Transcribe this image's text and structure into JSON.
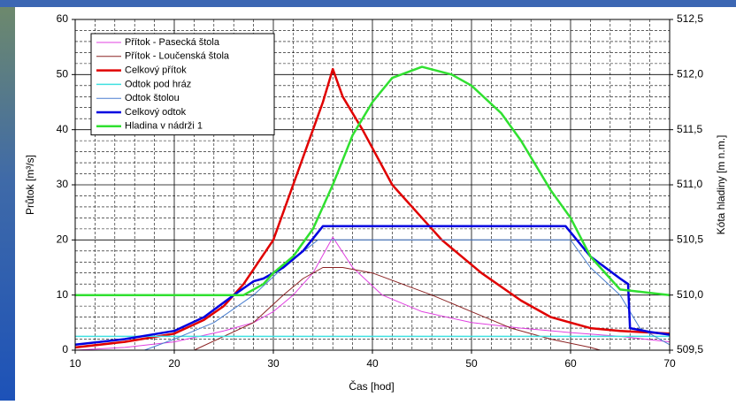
{
  "chart_data": {
    "type": "line",
    "xlabel": "Čas [hod]",
    "ylabel": "Průtok [m³/s]",
    "y2label": "Kóta hladiny [m n.m.]",
    "xlim": [
      10,
      70
    ],
    "xticks": [
      10,
      20,
      30,
      40,
      50,
      60,
      70
    ],
    "ylim": [
      0,
      60
    ],
    "yticks": [
      0,
      10,
      20,
      30,
      40,
      50,
      60
    ],
    "y2lim": [
      509.5,
      512.5
    ],
    "y2ticks": [
      {
        "value": 509.5,
        "label": "509,5"
      },
      {
        "value": 510.0,
        "label": "510,0"
      },
      {
        "value": 510.5,
        "label": "510,5"
      },
      {
        "value": 511.0,
        "label": "511,0"
      },
      {
        "value": 511.5,
        "label": "511,5"
      },
      {
        "value": 512.0,
        "label": "512,0"
      },
      {
        "value": 512.5,
        "label": "512,5"
      }
    ],
    "grid": true,
    "legend": "upper left",
    "series": [
      {
        "name": "Přítok - Pasecká štola",
        "color": "#e040e0",
        "width": 1,
        "x": [
          10,
          15,
          20,
          25,
          28,
          30,
          32,
          34,
          36,
          38,
          41,
          45,
          50,
          55,
          60,
          65,
          70
        ],
        "values": [
          0,
          0.5,
          1.5,
          3.5,
          5,
          7,
          10,
          14,
          20.5,
          15,
          10,
          7,
          5,
          4,
          3.2,
          2.5,
          1.5
        ]
      },
      {
        "name": "Přítok - Loučenská štola",
        "color": "#8b2323",
        "width": 1,
        "x": [
          22,
          25,
          28,
          31,
          33,
          35,
          37,
          40,
          43,
          46,
          50,
          54,
          58,
          62,
          63
        ],
        "values": [
          0,
          2.5,
          5,
          10,
          13,
          15,
          15,
          14,
          12,
          10,
          7,
          4,
          2,
          0.5,
          0
        ]
      },
      {
        "name": "Celkový přítok",
        "color": "#e00000",
        "width": 2.5,
        "x": [
          10,
          15,
          20,
          23,
          25,
          27,
          30,
          33,
          35,
          36,
          37,
          39,
          42,
          45,
          47,
          51,
          55,
          58,
          62,
          65,
          70
        ],
        "values": [
          0.5,
          1.5,
          3,
          5.5,
          8,
          12,
          20,
          35,
          45,
          51,
          46,
          40,
          30,
          24,
          20,
          14,
          9,
          6,
          4,
          3.5,
          3
        ]
      },
      {
        "name": "Odtok pod hráz",
        "color": "#40e0e0",
        "width": 1.5,
        "x": [
          10,
          70
        ],
        "values": [
          2.5,
          2.5
        ]
      },
      {
        "name": "Odtok štolou",
        "color": "#4a7fd0",
        "width": 1,
        "x": [
          17,
          20,
          24,
          28,
          31,
          34.5,
          60,
          62,
          65,
          67,
          70
        ],
        "values": [
          0,
          2,
          5,
          10,
          15,
          20,
          20,
          15,
          10,
          4,
          1
        ]
      },
      {
        "name": "Celkový odtok",
        "color": "#0000e0",
        "width": 2.5,
        "x": [
          10,
          15,
          20,
          23,
          26,
          28,
          29,
          31,
          33,
          35,
          59.5,
          62,
          65,
          65.8,
          66,
          68,
          70
        ],
        "values": [
          1,
          2,
          3.5,
          6,
          10,
          12.5,
          13,
          15,
          18,
          22.5,
          22.5,
          17,
          13,
          12,
          4,
          3.3,
          2.8
        ]
      },
      {
        "name": "Hladina v nádrži 1",
        "color": "#30e030",
        "width": 2.5,
        "axis": "y2",
        "x": [
          10,
          27,
          29,
          30,
          32,
          34,
          36,
          38,
          40,
          42,
          45,
          48,
          50,
          53,
          55,
          58,
          60,
          62,
          64,
          65,
          70
        ],
        "values": [
          510.0,
          510.0,
          510.1,
          510.2,
          510.35,
          510.6,
          511.0,
          511.45,
          511.75,
          511.97,
          512.07,
          512.0,
          511.9,
          511.65,
          511.4,
          510.95,
          510.7,
          510.35,
          510.15,
          510.05,
          510.0
        ]
      }
    ]
  }
}
